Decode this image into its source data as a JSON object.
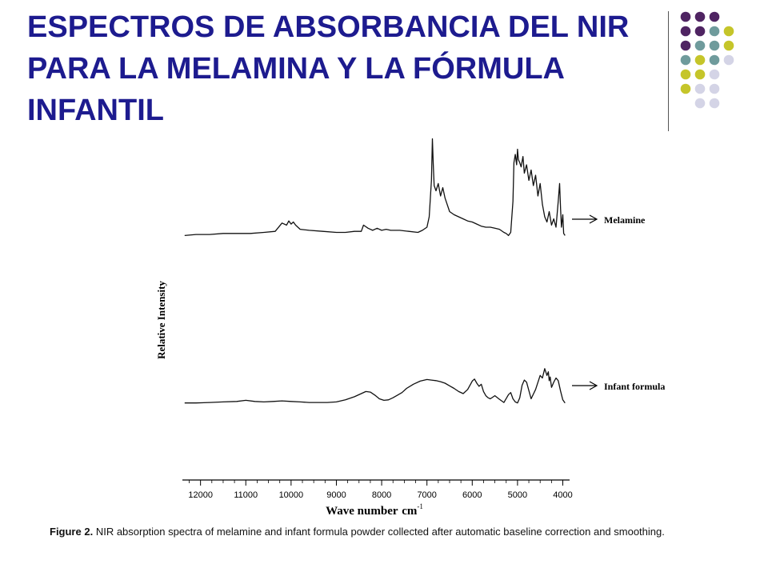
{
  "slide": {
    "title": "ESPECTROS DE ABSORBANCIA DEL NIR PARA LA MELAMINA Y LA FÓRMULA INFANTIL"
  },
  "theme": {
    "title_color": "#1d1b8f",
    "dot_colors": {
      "purple": "#4f2462",
      "teal": "#6f9b9c",
      "yellow": "#c5c52a",
      "lavender": "#d4d4e6"
    },
    "dot_pattern": [
      [
        "purple",
        "purple",
        "purple"
      ],
      [
        "purple",
        "purple",
        "teal",
        "yellow"
      ],
      [
        "purple",
        "teal",
        "teal",
        "yellow"
      ],
      [
        "teal",
        "yellow",
        "teal",
        "lavender"
      ],
      [
        "yellow",
        "yellow",
        "lavender"
      ],
      [
        "yellow",
        "lavender",
        "lavender"
      ],
      [
        "lavender",
        "lavender"
      ]
    ]
  },
  "figure": {
    "caption_label": "Figure 2.",
    "caption_text": "NIR absorption spectra of melamine and infant formula powder collected after automatic baseline correction and smoothing."
  },
  "chart_data": {
    "type": "line",
    "title": "",
    "xlabel": "Wave number",
    "xlabel_unit": "cm",
    "xlabel_unit_exponent": "-1",
    "ylabel": "Relative Intensity",
    "xlim": [
      12400,
      3850
    ],
    "x_reversed": true,
    "x_ticks": [
      12000,
      11000,
      10000,
      9000,
      8000,
      7000,
      6000,
      5000,
      4000
    ],
    "y_ticks": [],
    "grid": false,
    "legend": "inline labels with arrows on the right",
    "series": [
      {
        "name": "Melamine",
        "x": [
          12350,
          12100,
          11800,
          11500,
          11200,
          10900,
          10600,
          10350,
          10200,
          10100,
          10050,
          10000,
          9950,
          9900,
          9800,
          9600,
          9300,
          9000,
          8800,
          8600,
          8450,
          8400,
          8300,
          8200,
          8100,
          8000,
          7900,
          7800,
          7600,
          7400,
          7200,
          7100,
          7000,
          6950,
          6900,
          6880,
          6860,
          6840,
          6800,
          6750,
          6700,
          6650,
          6600,
          6500,
          6400,
          6300,
          6200,
          6100,
          6000,
          5900,
          5800,
          5700,
          5600,
          5500,
          5400,
          5300,
          5250,
          5200,
          5150,
          5100,
          5080,
          5050,
          5020,
          5000,
          4980,
          4950,
          4920,
          4880,
          4850,
          4800,
          4750,
          4700,
          4650,
          4600,
          4550,
          4500,
          4450,
          4400,
          4350,
          4300,
          4250,
          4200,
          4150,
          4100,
          4070,
          4050,
          4030,
          4000,
          3980,
          3950
        ],
        "values": [
          0.02,
          0.03,
          0.03,
          0.04,
          0.04,
          0.04,
          0.05,
          0.06,
          0.14,
          0.12,
          0.16,
          0.13,
          0.15,
          0.12,
          0.08,
          0.07,
          0.06,
          0.05,
          0.05,
          0.06,
          0.06,
          0.12,
          0.09,
          0.07,
          0.09,
          0.07,
          0.08,
          0.07,
          0.07,
          0.06,
          0.05,
          0.07,
          0.1,
          0.2,
          0.55,
          0.95,
          0.7,
          0.5,
          0.45,
          0.52,
          0.4,
          0.48,
          0.38,
          0.25,
          0.22,
          0.2,
          0.18,
          0.16,
          0.15,
          0.13,
          0.11,
          0.1,
          0.1,
          0.09,
          0.08,
          0.05,
          0.04,
          0.02,
          0.05,
          0.35,
          0.72,
          0.8,
          0.7,
          0.85,
          0.75,
          0.72,
          0.68,
          0.78,
          0.62,
          0.7,
          0.55,
          0.65,
          0.5,
          0.6,
          0.4,
          0.52,
          0.32,
          0.2,
          0.15,
          0.25,
          0.12,
          0.18,
          0.1,
          0.35,
          0.52,
          0.28,
          0.1,
          0.22,
          0.04,
          0.02
        ]
      },
      {
        "name": "Infant formula",
        "x": [
          12350,
          12100,
          11800,
          11500,
          11200,
          11000,
          10800,
          10600,
          10400,
          10200,
          10000,
          9800,
          9600,
          9400,
          9200,
          9000,
          8800,
          8600,
          8450,
          8350,
          8250,
          8150,
          8050,
          7950,
          7850,
          7750,
          7650,
          7550,
          7450,
          7300,
          7150,
          7000,
          6900,
          6800,
          6700,
          6600,
          6500,
          6400,
          6300,
          6200,
          6100,
          6000,
          5950,
          5900,
          5850,
          5800,
          5750,
          5700,
          5650,
          5600,
          5500,
          5400,
          5300,
          5200,
          5150,
          5100,
          5050,
          5000,
          4950,
          4900,
          4850,
          4800,
          4700,
          4600,
          4500,
          4450,
          4400,
          4350,
          4320,
          4300,
          4280,
          4250,
          4200,
          4150,
          4100,
          4050,
          4000,
          3950
        ],
        "values": [
          0.02,
          0.02,
          0.03,
          0.04,
          0.05,
          0.07,
          0.05,
          0.04,
          0.05,
          0.06,
          0.05,
          0.04,
          0.03,
          0.03,
          0.03,
          0.04,
          0.08,
          0.14,
          0.2,
          0.24,
          0.23,
          0.17,
          0.1,
          0.07,
          0.08,
          0.12,
          0.17,
          0.22,
          0.3,
          0.38,
          0.44,
          0.47,
          0.46,
          0.45,
          0.43,
          0.4,
          0.35,
          0.3,
          0.24,
          0.2,
          0.28,
          0.44,
          0.48,
          0.4,
          0.34,
          0.38,
          0.24,
          0.16,
          0.12,
          0.1,
          0.16,
          0.09,
          0.03,
          0.18,
          0.22,
          0.1,
          0.04,
          0.02,
          0.12,
          0.36,
          0.46,
          0.42,
          0.1,
          0.28,
          0.55,
          0.5,
          0.68,
          0.55,
          0.62,
          0.45,
          0.52,
          0.32,
          0.42,
          0.5,
          0.45,
          0.25,
          0.08,
          0.02
        ]
      }
    ]
  }
}
